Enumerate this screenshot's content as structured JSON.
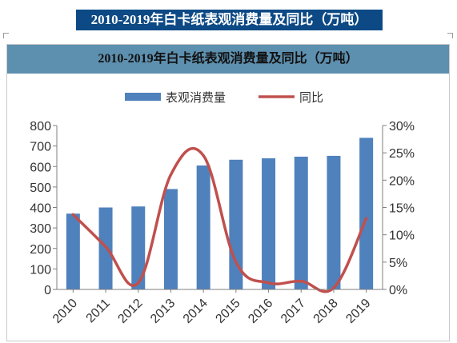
{
  "page_caption": "2010-2019年白卡纸表观消费量及同比（万吨）",
  "colors": {
    "bar": "#4f81bd",
    "line": "#c0504d",
    "header": "#5d8fae",
    "caption_bg": "#0d4a85"
  },
  "chart_data": {
    "type": "bar",
    "title": "2010-2019年白卡纸表观消费量及同比（万吨）",
    "categories": [
      "2010",
      "2011",
      "2012",
      "2013",
      "2014",
      "2015",
      "2016",
      "2017",
      "2018",
      "2019"
    ],
    "series": [
      {
        "name": "表观消费量",
        "type": "bar",
        "axis": "left",
        "values": [
          370,
          400,
          405,
          490,
          605,
          633,
          640,
          648,
          652,
          740
        ]
      },
      {
        "name": "同比",
        "type": "line",
        "axis": "right",
        "values": [
          0.137,
          0.078,
          0.012,
          0.21,
          0.245,
          0.05,
          0.012,
          0.015,
          0.003,
          0.13
        ]
      }
    ],
    "y_left": {
      "min": 0,
      "max": 800,
      "ticks": [
        "0",
        "100",
        "200",
        "300",
        "400",
        "500",
        "600",
        "700",
        "800"
      ]
    },
    "y_right": {
      "min": 0,
      "max": 0.3,
      "ticks": [
        "0%",
        "5%",
        "10%",
        "15%",
        "20%",
        "25%",
        "30%"
      ]
    },
    "legend_position": "top-center",
    "grid": false
  }
}
